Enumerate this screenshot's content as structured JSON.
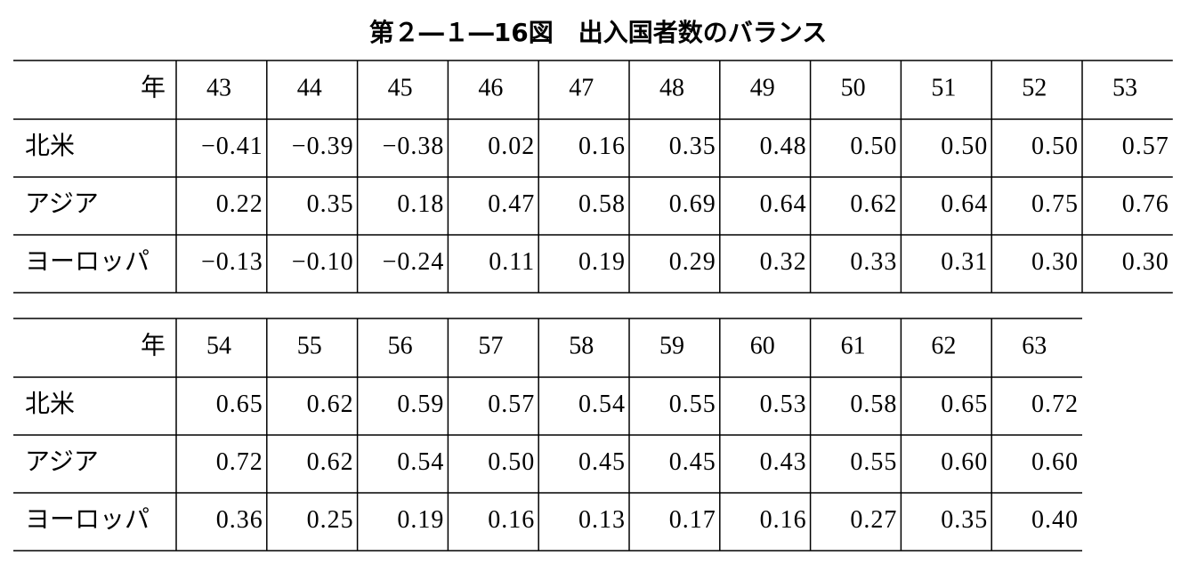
{
  "title": "第２―１―16図　出入国者数のバランス",
  "tables": [
    {
      "header": [
        "年",
        "43",
        "44",
        "45",
        "46",
        "47",
        "48",
        "49",
        "50",
        "51",
        "52",
        "53"
      ],
      "rows": [
        [
          "北米",
          "−0.41",
          "−0.39",
          "−0.38",
          "0.02",
          "0.16",
          "0.35",
          "0.48",
          "0.50",
          "0.50",
          "0.50",
          "0.57"
        ],
        [
          "アジア",
          "0.22",
          "0.35",
          "0.18",
          "0.47",
          "0.58",
          "0.69",
          "0.64",
          "0.62",
          "0.64",
          "0.75",
          "0.76"
        ],
        [
          "ヨーロッパ",
          "−0.13",
          "−0.10",
          "−0.24",
          "0.11",
          "0.19",
          "0.29",
          "0.32",
          "0.33",
          "0.31",
          "0.30",
          "0.30"
        ]
      ]
    },
    {
      "header": [
        "年",
        "54",
        "55",
        "56",
        "57",
        "58",
        "59",
        "60",
        "61",
        "62",
        "63"
      ],
      "rows": [
        [
          "北米",
          "0.65",
          "0.62",
          "0.59",
          "0.57",
          "0.54",
          "0.55",
          "0.53",
          "0.58",
          "0.65",
          "0.72"
        ],
        [
          "アジア",
          "0.72",
          "0.62",
          "0.54",
          "0.50",
          "0.45",
          "0.45",
          "0.43",
          "0.55",
          "0.60",
          "0.60"
        ],
        [
          "ヨーロッパ",
          "0.36",
          "0.25",
          "0.19",
          "0.16",
          "0.13",
          "0.17",
          "0.16",
          "0.27",
          "0.35",
          "0.40"
        ]
      ]
    }
  ]
}
